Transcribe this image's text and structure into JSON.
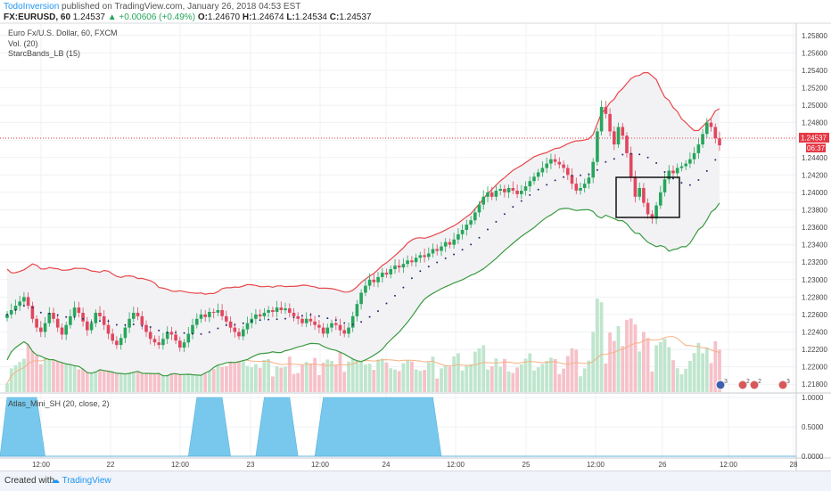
{
  "header": {
    "author": "TodoInversion",
    "published": "published on TradingView.com, January 26, 2018 04:53 EST",
    "symbol": "FX:EURUSD, 60",
    "last": "1.24537",
    "change": "▲ +0.00606 (+0.49%)",
    "o_label": "O:",
    "o": "1.24670",
    "h_label": "H:",
    "h": "1.24674",
    "l_label": "L:",
    "l": "1.24534",
    "c_label": "C:",
    "c": "1.24537"
  },
  "legend": {
    "main": "Euro Fx/U.S. Dollar, 60, FXCM",
    "vol": "Vol. (20)",
    "bands": "StarcBands_LB (15)",
    "oscillator": "Atlas_Mini_SH (20, close, 2)"
  },
  "footer": {
    "created": "Created with",
    "brand": "TradingView"
  },
  "colors": {
    "up": "#26a65b",
    "down": "#e0475e",
    "upper_band": "#e8474a",
    "lower_band": "#3a9a3f",
    "band_fill": "#f2f2f5",
    "vol_ma": "#f5b183",
    "oscillator": "#77c8ec",
    "price_line": "#e63946"
  },
  "price_label": {
    "value": "1.24537",
    "countdown": "06:37"
  },
  "chart_data": [
    {
      "type": "candlestick",
      "title": "Euro Fx/U.S. Dollar, 60, FXCM",
      "ylim": [
        1.217,
        1.259
      ],
      "y_ticks": [
        "1.25800",
        "1.25600",
        "1.25400",
        "1.25200",
        "1.25000",
        "1.24800",
        "1.24600",
        "1.24400",
        "1.24200",
        "1.24000",
        "1.23800",
        "1.23600",
        "1.23400",
        "1.23200",
        "1.23000",
        "1.22800",
        "1.22600",
        "1.22400",
        "1.22200",
        "1.22000",
        "1.21800"
      ],
      "x_ticks": [
        "12:00",
        "22",
        "12:00",
        "23",
        "12:00",
        "24",
        "12:00",
        "25",
        "12:00",
        "26",
        "12:00",
        "28"
      ],
      "close_series": [
        1.226,
        1.2265,
        1.227,
        1.2275,
        1.228,
        1.227,
        1.2255,
        1.2245,
        1.224,
        1.225,
        1.2262,
        1.2255,
        1.2245,
        1.2237,
        1.2248,
        1.2258,
        1.2268,
        1.2262,
        1.2252,
        1.2242,
        1.225,
        1.2262,
        1.2258,
        1.2248,
        1.2238,
        1.223,
        1.2225,
        1.2233,
        1.2245,
        1.2255,
        1.2262,
        1.2258,
        1.2248,
        1.224,
        1.2232,
        1.2228,
        1.2225,
        1.2232,
        1.224,
        1.2237,
        1.223,
        1.2222,
        1.2228,
        1.2238,
        1.2248,
        1.2255,
        1.226,
        1.2257,
        1.2263,
        1.2262,
        1.2265,
        1.2258,
        1.2252,
        1.2245,
        1.224,
        1.2235,
        1.2243,
        1.225,
        1.2255,
        1.226,
        1.2258,
        1.2262,
        1.2265,
        1.2263,
        1.2268,
        1.2265,
        1.2267,
        1.2262,
        1.2258,
        1.2255,
        1.225,
        1.2255,
        1.2252,
        1.2248,
        1.2245,
        1.2238,
        1.2245,
        1.225,
        1.2248,
        1.2242,
        1.2238,
        1.2245,
        1.2258,
        1.2272,
        1.2285,
        1.2293,
        1.23,
        1.2297,
        1.2303,
        1.2308,
        1.2306,
        1.2312,
        1.2316,
        1.2314,
        1.2318,
        1.2322,
        1.232,
        1.2325,
        1.2328,
        1.2326,
        1.233,
        1.2335,
        1.2333,
        1.2338,
        1.2343,
        1.234,
        1.2346,
        1.2352,
        1.2357,
        1.2363,
        1.2368,
        1.2377,
        1.2386,
        1.2395,
        1.24,
        1.2395,
        1.2402,
        1.2404,
        1.24,
        1.2405,
        1.2402,
        1.2398,
        1.2402,
        1.2407,
        1.2413,
        1.2418,
        1.2423,
        1.2428,
        1.2433,
        1.2438,
        1.2435,
        1.2432,
        1.2428,
        1.242,
        1.241,
        1.2402,
        1.2405,
        1.241,
        1.2417,
        1.2435,
        1.247,
        1.2498,
        1.249,
        1.247,
        1.2455,
        1.2475,
        1.2465,
        1.2445,
        1.2418,
        1.2395,
        1.2405,
        1.2388,
        1.2375,
        1.237,
        1.2385,
        1.24,
        1.2415,
        1.2425,
        1.2422,
        1.2428,
        1.243,
        1.2433,
        1.2438,
        1.2445,
        1.2455,
        1.2467,
        1.248,
        1.2475,
        1.2462,
        1.2454
      ],
      "note_box": "rectangle highlighting Jan 26 pullback"
    },
    {
      "type": "bar",
      "title": "Vol. (20)",
      "x_ticks": [
        "12:00",
        "22",
        "12:00",
        "23",
        "12:00",
        "24",
        "12:00",
        "25",
        "12:00",
        "26",
        "12:00",
        "28"
      ]
    },
    {
      "type": "area",
      "title": "Atlas_Mini_SH (20, close, 2)",
      "ylim": [
        0,
        1
      ],
      "y_ticks": [
        "1.0000",
        "0.5000",
        "0.0000"
      ],
      "active_segments": [
        [
          0,
          7
        ],
        [
          45,
          51
        ],
        [
          61,
          67
        ],
        [
          75,
          101
        ]
      ]
    }
  ]
}
